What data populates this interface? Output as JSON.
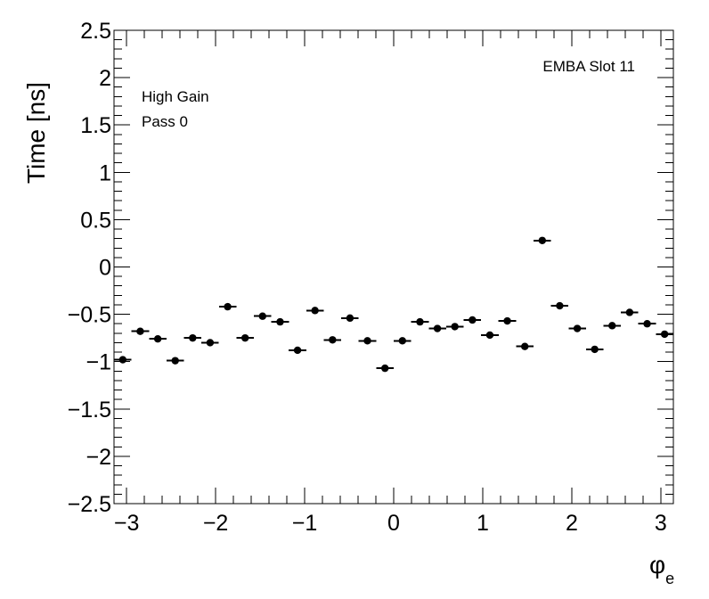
{
  "chart_data": {
    "type": "scatter",
    "title": "",
    "xlabel": "φ",
    "xlabel_subscript": "e",
    "ylabel": "Time [ns]",
    "xlim": [
      -3.14159,
      3.14159
    ],
    "ylim": [
      -2.5,
      2.5
    ],
    "x_ticks": [
      -3,
      -2,
      -1,
      0,
      1,
      2,
      3
    ],
    "x_tick_labels": [
      "−3",
      "−2",
      "−1",
      "0",
      "1",
      "2",
      "3"
    ],
    "y_ticks": [
      -2.5,
      -2,
      -1.5,
      -1,
      -0.5,
      0,
      0.5,
      1,
      1.5,
      2,
      2.5
    ],
    "y_tick_labels": [
      "−2.5",
      "−2",
      "−1.5",
      "−1",
      "−0.5",
      "0",
      "0.5",
      "1",
      "1.5",
      "2",
      "2.5"
    ],
    "grid": false,
    "annotations": [
      "High Gain",
      "Pass 0",
      "EMBA Slot 11"
    ],
    "series": [
      {
        "x_errors": 0.0982,
        "points": [
          {
            "x": -3.043,
            "y": -0.98
          },
          {
            "x": -2.847,
            "y": -0.68
          },
          {
            "x": -2.65,
            "y": -0.76
          },
          {
            "x": -2.454,
            "y": -0.99
          },
          {
            "x": -2.258,
            "y": -0.75
          },
          {
            "x": -2.062,
            "y": -0.8
          },
          {
            "x": -1.865,
            "y": -0.42
          },
          {
            "x": -1.669,
            "y": -0.75
          },
          {
            "x": -1.473,
            "y": -0.52
          },
          {
            "x": -1.276,
            "y": -0.58
          },
          {
            "x": -1.08,
            "y": -0.88
          },
          {
            "x": -0.884,
            "y": -0.46
          },
          {
            "x": -0.687,
            "y": -0.77
          },
          {
            "x": -0.491,
            "y": -0.54
          },
          {
            "x": -0.295,
            "y": -0.78
          },
          {
            "x": -0.098,
            "y": -1.07
          },
          {
            "x": 0.098,
            "y": -0.78
          },
          {
            "x": 0.295,
            "y": -0.58
          },
          {
            "x": 0.491,
            "y": -0.65
          },
          {
            "x": 0.687,
            "y": -0.63
          },
          {
            "x": 0.884,
            "y": -0.56
          },
          {
            "x": 1.08,
            "y": -0.72
          },
          {
            "x": 1.276,
            "y": -0.57
          },
          {
            "x": 1.473,
            "y": -0.84
          },
          {
            "x": 1.669,
            "y": 0.28
          },
          {
            "x": 1.865,
            "y": -0.41
          },
          {
            "x": 2.062,
            "y": -0.65
          },
          {
            "x": 2.258,
            "y": -0.87
          },
          {
            "x": 2.454,
            "y": -0.62
          },
          {
            "x": 2.65,
            "y": -0.48
          },
          {
            "x": 2.847,
            "y": -0.6
          },
          {
            "x": 3.043,
            "y": -0.71
          }
        ]
      }
    ]
  }
}
